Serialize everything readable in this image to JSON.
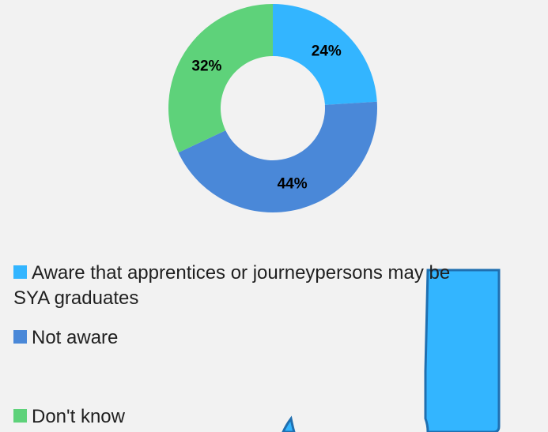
{
  "chart_data": {
    "type": "pie",
    "variant": "donut",
    "title": "",
    "categories": [
      "Aware that apprentices or journeypersons may be SYA graduates",
      "Not aware",
      "Don't know"
    ],
    "values": [
      24,
      44,
      32
    ],
    "labels": [
      "24%",
      "44%",
      "32%"
    ],
    "colors": [
      "#33b5ff",
      "#4a88d8",
      "#5ed27a"
    ],
    "legend": "bottom-left"
  },
  "legend": {
    "items": [
      {
        "label": "Aware that apprentices or journeypersons may be",
        "label_cont": "SYA graduates",
        "color": "#33b5ff"
      },
      {
        "label": "Not aware",
        "color": "#4a88d8"
      },
      {
        "label": "Don't know",
        "color": "#5ed27a"
      }
    ]
  },
  "decoration": {
    "arrow_fill": "#33b5ff",
    "arrow_stroke": "#1f6fb0"
  }
}
